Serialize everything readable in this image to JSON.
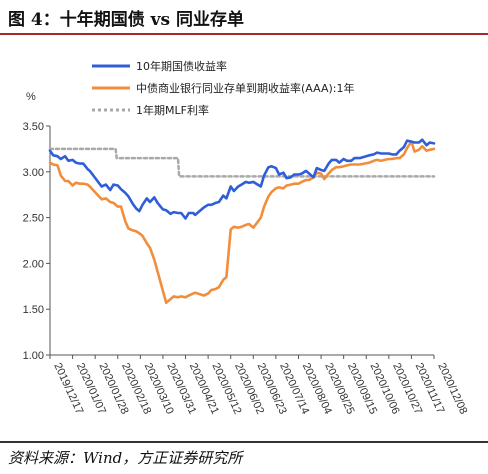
{
  "header": {
    "title": "图 4：十年期国债 vs 同业存单"
  },
  "footer": {
    "source": "资料来源：Wind，方正证券研究所"
  },
  "chart_data": {
    "type": "line",
    "ylabel": "%",
    "ylim": [
      1.0,
      3.5
    ],
    "yticks": [
      "3.50",
      "3.00",
      "2.50",
      "2.00",
      "1.50",
      "1.00"
    ],
    "ytick_values": [
      3.5,
      3.0,
      2.5,
      2.0,
      1.5,
      1.0
    ],
    "x_start": "2019/12/17",
    "x_end": "2020/12/08",
    "xticks": [
      "2019/12/17",
      "2020/01/07",
      "2020/01/28",
      "2020/02/18",
      "2020/03/10",
      "2020/03/31",
      "2020/04/21",
      "2020/05/12",
      "2020/06/02",
      "2020/06/23",
      "2020/07/14",
      "2020/08/04",
      "2020/08/25",
      "2020/09/15",
      "2020/10/06",
      "2020/10/27",
      "2020/11/17",
      "2020/12/08"
    ],
    "grid": false,
    "legend_position": "top",
    "series": [
      {
        "name": "10年期国债收益率",
        "color": "#2e5fd9",
        "points": [
          [
            "2019/12/17",
            3.23
          ],
          [
            "2019/12/20",
            3.18
          ],
          [
            "2019/12/24",
            3.17
          ],
          [
            "2019/12/27",
            3.14
          ],
          [
            "2019/12/31",
            3.17
          ],
          [
            "2020/01/03",
            3.12
          ],
          [
            "2020/01/07",
            3.13
          ],
          [
            "2020/01/10",
            3.1
          ],
          [
            "2020/01/14",
            3.09
          ],
          [
            "2020/01/17",
            3.09
          ],
          [
            "2020/01/21",
            3.03
          ],
          [
            "2020/01/23",
            3.01
          ],
          [
            "2020/02/03",
            2.84
          ],
          [
            "2020/02/07",
            2.86
          ],
          [
            "2020/02/11",
            2.8
          ],
          [
            "2020/02/14",
            2.86
          ],
          [
            "2020/02/18",
            2.85
          ],
          [
            "2020/02/21",
            2.81
          ],
          [
            "2020/02/25",
            2.77
          ],
          [
            "2020/02/28",
            2.73
          ],
          [
            "2020/03/03",
            2.65
          ],
          [
            "2020/03/06",
            2.6
          ],
          [
            "2020/03/09",
            2.57
          ],
          [
            "2020/03/12",
            2.64
          ],
          [
            "2020/03/16",
            2.71
          ],
          [
            "2020/03/19",
            2.67
          ],
          [
            "2020/03/23",
            2.72
          ],
          [
            "2020/03/26",
            2.66
          ],
          [
            "2020/03/31",
            2.59
          ],
          [
            "2020/04/03",
            2.58
          ],
          [
            "2020/04/07",
            2.54
          ],
          [
            "2020/04/10",
            2.56
          ],
          [
            "2020/04/14",
            2.55
          ],
          [
            "2020/04/17",
            2.55
          ],
          [
            "2020/04/21",
            2.49
          ],
          [
            "2020/04/24",
            2.55
          ],
          [
            "2020/04/28",
            2.55
          ],
          [
            "2020/04/30",
            2.53
          ],
          [
            "2020/05/08",
            2.61
          ],
          [
            "2020/05/12",
            2.64
          ],
          [
            "2020/05/15",
            2.64
          ],
          [
            "2020/05/19",
            2.66
          ],
          [
            "2020/05/22",
            2.67
          ],
          [
            "2020/05/26",
            2.74
          ],
          [
            "2020/05/29",
            2.71
          ],
          [
            "2020/06/02",
            2.84
          ],
          [
            "2020/06/05",
            2.79
          ],
          [
            "2020/06/09",
            2.84
          ],
          [
            "2020/06/12",
            2.86
          ],
          [
            "2020/06/16",
            2.89
          ],
          [
            "2020/06/19",
            2.88
          ],
          [
            "2020/06/23",
            2.89
          ],
          [
            "2020/06/30",
            2.84
          ],
          [
            "2020/07/03",
            2.96
          ],
          [
            "2020/07/07",
            3.05
          ],
          [
            "2020/07/10",
            3.06
          ],
          [
            "2020/07/14",
            3.04
          ],
          [
            "2020/07/17",
            2.97
          ],
          [
            "2020/07/21",
            2.99
          ],
          [
            "2020/07/24",
            2.93
          ],
          [
            "2020/07/28",
            2.94
          ],
          [
            "2020/07/31",
            2.97
          ],
          [
            "2020/08/04",
            2.97
          ],
          [
            "2020/08/07",
            2.98
          ],
          [
            "2020/08/11",
            3.01
          ],
          [
            "2020/08/14",
            2.98
          ],
          [
            "2020/08/18",
            2.94
          ],
          [
            "2020/08/21",
            3.04
          ],
          [
            "2020/08/25",
            3.02
          ],
          [
            "2020/08/28",
            3.01
          ],
          [
            "2020/09/01",
            3.09
          ],
          [
            "2020/09/04",
            3.13
          ],
          [
            "2020/09/08",
            3.13
          ],
          [
            "2020/09/11",
            3.1
          ],
          [
            "2020/09/15",
            3.14
          ],
          [
            "2020/09/18",
            3.12
          ],
          [
            "2020/09/22",
            3.12
          ],
          [
            "2020/09/25",
            3.15
          ],
          [
            "2020/09/30",
            3.15
          ],
          [
            "2020/10/09",
            3.18
          ],
          [
            "2020/10/13",
            3.19
          ],
          [
            "2020/10/16",
            3.21
          ],
          [
            "2020/10/20",
            3.2
          ],
          [
            "2020/10/23",
            3.2
          ],
          [
            "2020/10/27",
            3.2
          ],
          [
            "2020/10/30",
            3.19
          ],
          [
            "2020/11/03",
            3.19
          ],
          [
            "2020/11/06",
            3.23
          ],
          [
            "2020/11/10",
            3.27
          ],
          [
            "2020/11/13",
            3.34
          ],
          [
            "2020/11/17",
            3.33
          ],
          [
            "2020/11/20",
            3.32
          ],
          [
            "2020/11/24",
            3.32
          ],
          [
            "2020/11/27",
            3.35
          ],
          [
            "2020/12/01",
            3.29
          ],
          [
            "2020/12/04",
            3.32
          ],
          [
            "2020/12/08",
            3.31
          ]
        ]
      },
      {
        "name": "中债商业银行同业存单到期收益率(AAA):1年",
        "color": "#f28e3b",
        "points": [
          [
            "2019/12/17",
            3.1
          ],
          [
            "2019/12/20",
            3.08
          ],
          [
            "2019/12/24",
            3.07
          ],
          [
            "2019/12/27",
            2.96
          ],
          [
            "2019/12/31",
            2.9
          ],
          [
            "2020/01/03",
            2.9
          ],
          [
            "2020/01/07",
            2.85
          ],
          [
            "2020/01/10",
            2.88
          ],
          [
            "2020/01/14",
            2.87
          ],
          [
            "2020/01/17",
            2.87
          ],
          [
            "2020/01/21",
            2.86
          ],
          [
            "2020/01/23",
            2.84
          ],
          [
            "2020/02/03",
            2.7
          ],
          [
            "2020/02/07",
            2.71
          ],
          [
            "2020/02/11",
            2.67
          ],
          [
            "2020/02/14",
            2.66
          ],
          [
            "2020/02/18",
            2.62
          ],
          [
            "2020/02/21",
            2.62
          ],
          [
            "2020/02/25",
            2.46
          ],
          [
            "2020/02/28",
            2.38
          ],
          [
            "2020/03/03",
            2.36
          ],
          [
            "2020/03/06",
            2.35
          ],
          [
            "2020/03/09",
            2.33
          ],
          [
            "2020/03/12",
            2.3
          ],
          [
            "2020/03/16",
            2.22
          ],
          [
            "2020/03/19",
            2.17
          ],
          [
            "2020/03/23",
            2.04
          ],
          [
            "2020/03/26",
            1.91
          ],
          [
            "2020/03/31",
            1.7
          ],
          [
            "2020/04/03",
            1.57
          ],
          [
            "2020/04/07",
            1.61
          ],
          [
            "2020/04/10",
            1.64
          ],
          [
            "2020/04/14",
            1.63
          ],
          [
            "2020/04/17",
            1.64
          ],
          [
            "2020/04/21",
            1.63
          ],
          [
            "2020/04/24",
            1.65
          ],
          [
            "2020/04/28",
            1.67
          ],
          [
            "2020/04/30",
            1.68
          ],
          [
            "2020/05/08",
            1.65
          ],
          [
            "2020/05/12",
            1.67
          ],
          [
            "2020/05/15",
            1.71
          ],
          [
            "2020/05/19",
            1.72
          ],
          [
            "2020/05/22",
            1.74
          ],
          [
            "2020/05/26",
            1.82
          ],
          [
            "2020/05/29",
            1.85
          ],
          [
            "2020/06/02",
            2.37
          ],
          [
            "2020/06/05",
            2.4
          ],
          [
            "2020/06/09",
            2.39
          ],
          [
            "2020/06/12",
            2.4
          ],
          [
            "2020/06/16",
            2.42
          ],
          [
            "2020/06/19",
            2.43
          ],
          [
            "2020/06/23",
            2.39
          ],
          [
            "2020/06/30",
            2.5
          ],
          [
            "2020/07/03",
            2.62
          ],
          [
            "2020/07/07",
            2.73
          ],
          [
            "2020/07/10",
            2.78
          ],
          [
            "2020/07/14",
            2.82
          ],
          [
            "2020/07/17",
            2.83
          ],
          [
            "2020/07/21",
            2.82
          ],
          [
            "2020/07/24",
            2.85
          ],
          [
            "2020/07/28",
            2.86
          ],
          [
            "2020/07/31",
            2.87
          ],
          [
            "2020/08/04",
            2.87
          ],
          [
            "2020/08/07",
            2.89
          ],
          [
            "2020/08/11",
            2.91
          ],
          [
            "2020/08/14",
            2.91
          ],
          [
            "2020/08/18",
            2.94
          ],
          [
            "2020/08/21",
            2.99
          ],
          [
            "2020/08/25",
            2.98
          ],
          [
            "2020/08/28",
            2.92
          ],
          [
            "2020/09/01",
            2.98
          ],
          [
            "2020/09/04",
            3.02
          ],
          [
            "2020/09/08",
            3.05
          ],
          [
            "2020/09/11",
            3.05
          ],
          [
            "2020/09/15",
            3.06
          ],
          [
            "2020/09/18",
            3.07
          ],
          [
            "2020/09/22",
            3.08
          ],
          [
            "2020/09/25",
            3.08
          ],
          [
            "2020/09/30",
            3.08
          ],
          [
            "2020/10/09",
            3.1
          ],
          [
            "2020/10/13",
            3.12
          ],
          [
            "2020/10/16",
            3.13
          ],
          [
            "2020/10/20",
            3.12
          ],
          [
            "2020/10/23",
            3.13
          ],
          [
            "2020/10/27",
            3.14
          ],
          [
            "2020/10/30",
            3.14
          ],
          [
            "2020/11/03",
            3.15
          ],
          [
            "2020/11/06",
            3.15
          ],
          [
            "2020/11/10",
            3.19
          ],
          [
            "2020/11/13",
            3.26
          ],
          [
            "2020/11/17",
            3.33
          ],
          [
            "2020/11/20",
            3.22
          ],
          [
            "2020/11/24",
            3.24
          ],
          [
            "2020/11/27",
            3.28
          ],
          [
            "2020/12/01",
            3.23
          ],
          [
            "2020/12/04",
            3.24
          ],
          [
            "2020/12/08",
            3.25
          ]
        ]
      },
      {
        "name": "1年期MLF利率",
        "color": "#a9a9a9",
        "dashed": true,
        "points": [
          [
            "2019/12/17",
            3.25
          ],
          [
            "2020/02/16",
            3.25
          ],
          [
            "2020/02/17",
            3.15
          ],
          [
            "2020/04/14",
            3.15
          ],
          [
            "2020/04/15",
            2.95
          ],
          [
            "2020/12/08",
            2.95
          ]
        ]
      }
    ]
  }
}
